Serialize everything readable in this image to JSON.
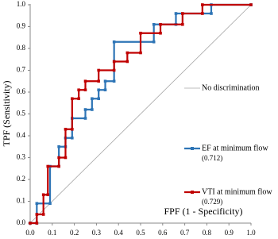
{
  "chart_data": {
    "type": "line",
    "y_label": "TPF (Sensitivity)",
    "x_label": "FPF (1 - Specificity)",
    "xlim": [
      0,
      1
    ],
    "ylim": [
      0,
      1
    ],
    "xticks": [
      {
        "value": 0,
        "label": "0.0"
      },
      0.1,
      0.2,
      0.3,
      0.4,
      0.5,
      0.6,
      0.7,
      0.8,
      0.9,
      {
        "value": 1,
        "label": "1.0"
      }
    ],
    "yticks": [
      {
        "value": 0,
        "label": "0.0"
      },
      0.1,
      0.2,
      0.3,
      0.4,
      0.5,
      0.6,
      0.7,
      0.8,
      0.9,
      {
        "value": 1,
        "label": "1.0"
      }
    ],
    "series": [
      {
        "name": "No discrimination",
        "color": "#a6a6a6",
        "x": [
          0,
          1
        ],
        "y": [
          0,
          1
        ]
      },
      {
        "name": "EF at minimum flow",
        "note": "(0.712)",
        "color": "#2e75b6",
        "x": [
          0,
          0.03,
          0.03,
          0.09,
          0.09,
          0.13,
          0.13,
          0.16,
          0.16,
          0.19,
          0.19,
          0.25,
          0.25,
          0.28,
          0.28,
          0.31,
          0.31,
          0.34,
          0.34,
          0.38,
          0.38,
          0.56,
          0.56,
          0.66,
          0.66,
          0.82,
          0.82,
          1
        ],
        "y": [
          0,
          0,
          0.09,
          0.09,
          0.26,
          0.26,
          0.35,
          0.35,
          0.39,
          0.39,
          0.48,
          0.48,
          0.52,
          0.52,
          0.57,
          0.57,
          0.61,
          0.61,
          0.65,
          0.65,
          0.83,
          0.83,
          0.91,
          0.91,
          0.96,
          0.96,
          1,
          1
        ]
      },
      {
        "name": "VTI at minimum flow",
        "note": "(0.729)",
        "color": "#c00000",
        "x": [
          0,
          0.03,
          0.03,
          0.06,
          0.06,
          0.08,
          0.08,
          0.13,
          0.13,
          0.16,
          0.16,
          0.19,
          0.19,
          0.22,
          0.22,
          0.25,
          0.25,
          0.31,
          0.31,
          0.38,
          0.38,
          0.44,
          0.44,
          0.5,
          0.5,
          0.59,
          0.59,
          0.69,
          0.69,
          0.78,
          0.78,
          1
        ],
        "y": [
          0,
          0,
          0.04,
          0.04,
          0.13,
          0.13,
          0.26,
          0.26,
          0.3,
          0.3,
          0.43,
          0.43,
          0.57,
          0.57,
          0.61,
          0.61,
          0.65,
          0.65,
          0.7,
          0.7,
          0.74,
          0.74,
          0.78,
          0.78,
          0.87,
          0.87,
          0.91,
          0.91,
          0.96,
          0.96,
          1,
          1
        ]
      }
    ]
  }
}
